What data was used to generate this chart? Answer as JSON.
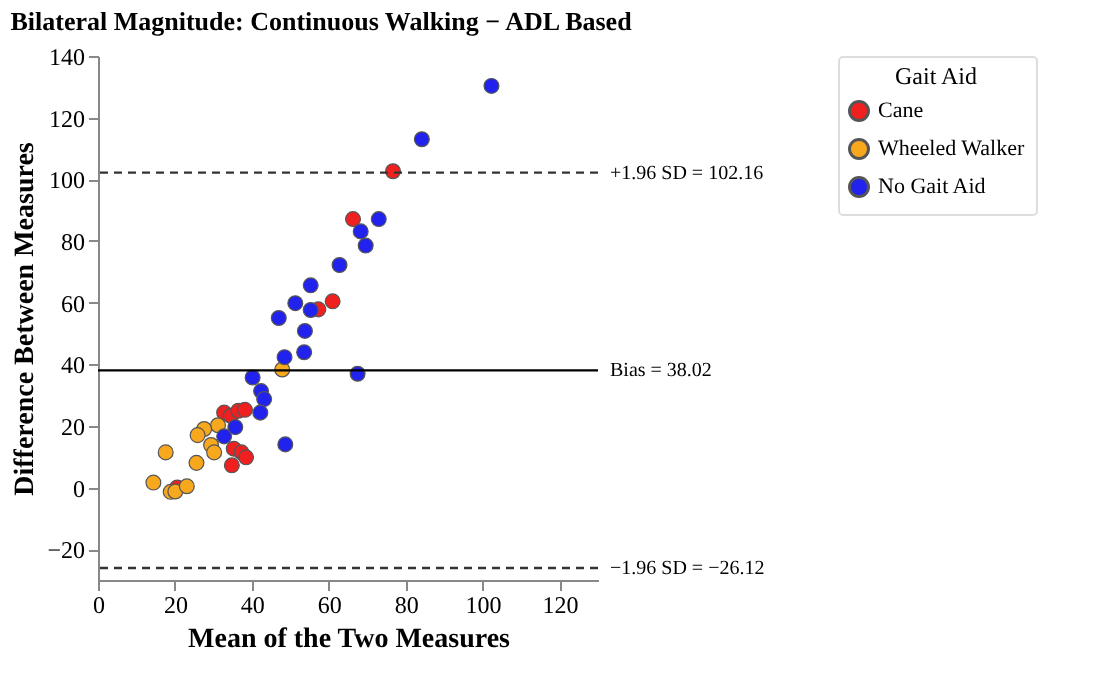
{
  "chart_data": {
    "type": "scatter",
    "title": "Bilateral Magnitude: Continuous Walking − ADL Based",
    "xlabel": "Mean of the Two Measures",
    "ylabel": "Difference Between Measures",
    "legend_title": "Gait Aid",
    "legend": "right",
    "marker": "circle",
    "grid": false,
    "xlim": [
      0,
      130
    ],
    "xticks": [
      0,
      20,
      40,
      60,
      80,
      100,
      120
    ],
    "ylim": [
      -30,
      140
    ],
    "yticks": [
      -20,
      0,
      20,
      40,
      60,
      80,
      100,
      120,
      140
    ],
    "series": [
      {
        "name": "Cane",
        "color": "#f02020",
        "x": [
          76.7,
          66.3,
          61,
          57.3,
          32.8,
          34.5,
          36.5,
          38.2,
          35.3,
          37.3,
          38.5,
          34.8,
          20.6
        ],
        "values": [
          102.6,
          87.1,
          60.4,
          57.8,
          24.3,
          23.3,
          24.9,
          25.2,
          12.6,
          11.4,
          9.8,
          7.2,
          0
        ]
      },
      {
        "name": "Wheeled Walker",
        "color": "#f8a81c",
        "x": [
          47.9,
          31.2,
          27.6,
          25.9,
          29.4,
          30.2,
          17.6,
          25.6,
          14.4,
          18.9,
          20.1,
          23.1
        ],
        "values": [
          38.3,
          20.2,
          19,
          17,
          13.8,
          11.4,
          11.4,
          8,
          1.6,
          -1.4,
          -1.3,
          0.4
        ]
      },
      {
        "name": "No Gait Aid",
        "color": "#2222ee",
        "x": [
          102.3,
          84.2,
          73,
          68.3,
          69.6,
          62.8,
          67.5,
          55.3,
          51.3,
          55.3,
          47,
          53.8,
          53.6,
          48.5,
          40.2,
          42.4,
          43.2,
          42.2,
          35.7,
          32.8,
          48.7
        ],
        "values": [
          130.3,
          113,
          87.1,
          83.1,
          78.5,
          72.2,
          36.9,
          65.6,
          59.8,
          57.6,
          55,
          50.8,
          43.9,
          42.3,
          35.7,
          31.3,
          28.7,
          24.3,
          19.6,
          16.6,
          14
        ]
      }
    ],
    "ref_lines": [
      {
        "axis": "y",
        "value": 102.16,
        "label": "+1.96 SD = 102.16",
        "line_style": "dashed",
        "color": "#333333"
      },
      {
        "axis": "y",
        "value": 38.02,
        "label": "Bias = 38.02",
        "line_style": "solid",
        "color": "#000000"
      },
      {
        "axis": "y",
        "value": -26.12,
        "label": "−1.96 SD = −26.12",
        "line_style": "dashed",
        "color": "#333333"
      }
    ]
  }
}
